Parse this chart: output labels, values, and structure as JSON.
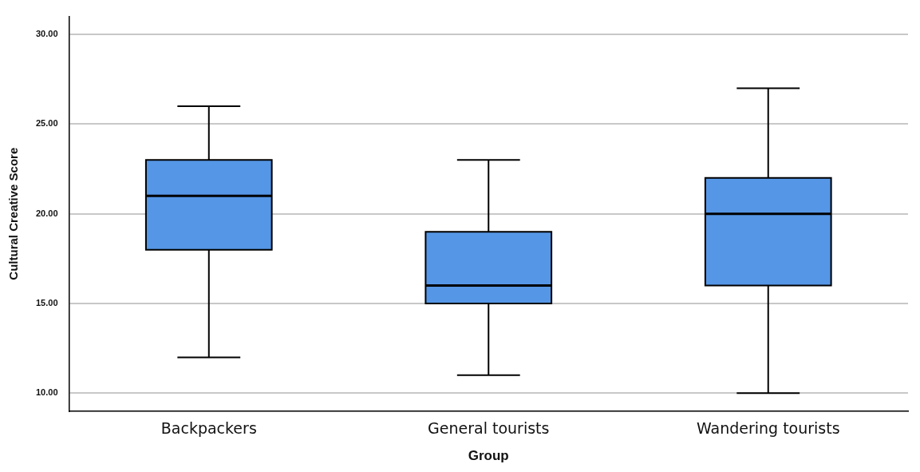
{
  "chart_data": {
    "type": "box",
    "xlabel": "Group",
    "ylabel": "Cultural Creative Score",
    "categories": [
      "Backpackers",
      "General tourists",
      "Wandering tourists"
    ],
    "color": "#5596e6",
    "boxes": [
      {
        "low": 12,
        "q1": 18,
        "median": 21,
        "q3": 23,
        "high": 26
      },
      {
        "low": 11,
        "q1": 15,
        "median": 16,
        "q3": 19,
        "high": 23
      },
      {
        "low": 10,
        "q1": 16,
        "median": 20,
        "q3": 22,
        "high": 27
      }
    ],
    "ylim": [
      9,
      31
    ],
    "yticks": [
      {
        "value": 10,
        "label": "10.00"
      },
      {
        "value": 15,
        "label": "15.00"
      },
      {
        "value": 20,
        "label": "20.00"
      },
      {
        "value": 25,
        "label": "25.00"
      },
      {
        "value": 30,
        "label": "30.00"
      }
    ],
    "grid": "y",
    "legend": false
  }
}
